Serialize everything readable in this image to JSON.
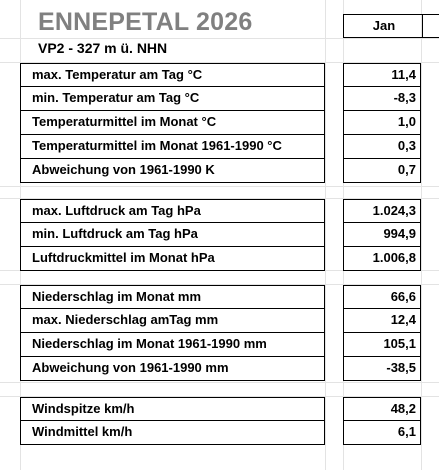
{
  "header": {
    "title": "ENNEPETAL 2026",
    "subtitle": "VP2 -  327 m ü. NHN",
    "month": "Jan"
  },
  "groups": [
    {
      "rows": [
        {
          "label": "max. Temperatur am Tag  °C",
          "value": "11,4"
        },
        {
          "label": "min. Temperatur am Tag  °C",
          "value": "-8,3"
        },
        {
          "label": "Temperaturmittel im Monat  °C",
          "value": "1,0"
        },
        {
          "label": "Temperaturmittel im Monat 1961-1990 °C",
          "value": "0,3"
        },
        {
          "label": "Abweichung von 1961-1990 K",
          "value": "0,7"
        }
      ]
    },
    {
      "rows": [
        {
          "label": "max. Luftdruck am Tag  hPa",
          "value": "1.024,3"
        },
        {
          "label": "min. Luftdruck am Tag  hPa",
          "value": "994,9"
        },
        {
          "label": "Luftdruckmittel im Monat  hPa",
          "value": "1.006,8"
        }
      ]
    },
    {
      "rows": [
        {
          "label": "Niederschlag im Monat  mm",
          "value": "66,6"
        },
        {
          "label": "max. Niederschlag amTag mm",
          "value": "12,4"
        },
        {
          "label": "Niederschlag im Monat 1961-1990 mm",
          "value": "105,1"
        },
        {
          "label": "Abweichung von 1961-1990 mm",
          "value": "-38,5"
        }
      ]
    },
    {
      "rows": [
        {
          "label": "Windspitze km/h",
          "value": "48,2"
        },
        {
          "label": "Windmittel km/h",
          "value": "6,1"
        }
      ]
    }
  ]
}
